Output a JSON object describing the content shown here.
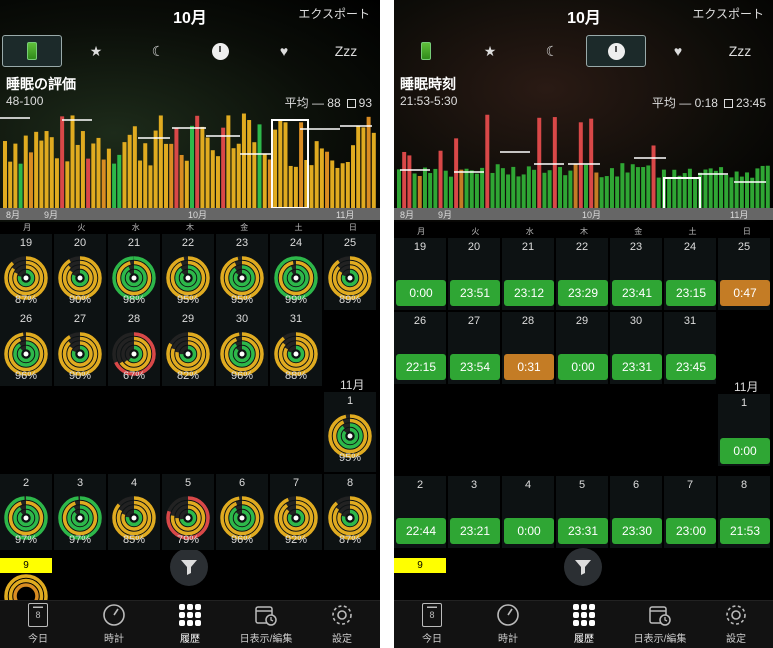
{
  "left": {
    "month": "10月",
    "export_label": "エクスポート",
    "tabs": [
      "battery-icon",
      "star-icon",
      "moon-icon",
      "clock-icon",
      "heart-icon",
      "Zzz"
    ],
    "tab_zzz_label": "Zzz",
    "active_tab": 0,
    "metric_title": "睡眠の評価",
    "metric_range": "48-100",
    "avg_label": "平均",
    "avg_value": "88",
    "best_value": "93",
    "axis_labels": [
      "8月",
      "9月",
      "10月",
      "11月"
    ],
    "weekdays": [
      "月",
      "火",
      "水",
      "木",
      "金",
      "土",
      "日"
    ],
    "rows": [
      {
        "days": [
          "19",
          "20",
          "21",
          "22",
          "23",
          "24",
          "25"
        ],
        "values": [
          "87%",
          "90%",
          "98%",
          "95%",
          "95%",
          "99%",
          "89%"
        ]
      },
      {
        "days": [
          "26",
          "27",
          "28",
          "29",
          "30",
          "31"
        ],
        "values": [
          "96%",
          "90%",
          "67%",
          "82%",
          "96%",
          "88%"
        ]
      },
      {
        "days": [
          "2",
          "3",
          "4",
          "5",
          "6",
          "7",
          "8"
        ],
        "values": [
          "97%",
          "97%",
          "85%",
          "79%",
          "96%",
          "92%",
          "87%"
        ]
      }
    ],
    "nov_label": "11月",
    "nov_first_day": "1",
    "nov_first_value": "95%",
    "today_badge": "9",
    "colors": {
      "gold": "#e6b21e",
      "orange": "#d98c22",
      "green": "#2db84a",
      "red": "#d94848"
    }
  },
  "right": {
    "month": "10月",
    "export_label": "エクスポート",
    "tab_zzz_label": "Zzz",
    "active_tab": 3,
    "metric_title": "睡眠時刻",
    "metric_range": "21:53-5:30",
    "avg_label": "平均",
    "avg_value": "0:18",
    "best_value": "23:45",
    "axis_labels": [
      "8月",
      "9月",
      "10月",
      "11月"
    ],
    "weekdays": [
      "月",
      "火",
      "水",
      "木",
      "金",
      "土",
      "日"
    ],
    "rows": [
      {
        "days": [
          "19",
          "20",
          "21",
          "22",
          "23",
          "24",
          "25"
        ],
        "times": [
          "0:00",
          "23:51",
          "23:12",
          "23:29",
          "23:41",
          "23:15",
          "0:47"
        ]
      },
      {
        "days": [
          "26",
          "27",
          "28",
          "29",
          "30",
          "31"
        ],
        "times": [
          "22:15",
          "23:54",
          "0:31",
          "0:00",
          "23:31",
          "23:45"
        ]
      },
      {
        "days": [
          "2",
          "3",
          "4",
          "5",
          "6",
          "7",
          "8"
        ],
        "times": [
          "22:44",
          "23:21",
          "0:00",
          "23:31",
          "23:30",
          "23:00",
          "21:53"
        ]
      }
    ],
    "nov_label": "11月",
    "nov_first_day": "1",
    "nov_first_time": "0:00",
    "today_badge": "9"
  },
  "bottom_nav": [
    "今日",
    "時計",
    "履歴",
    "日表示/編集",
    "設定"
  ],
  "today_tile_num": "8"
}
